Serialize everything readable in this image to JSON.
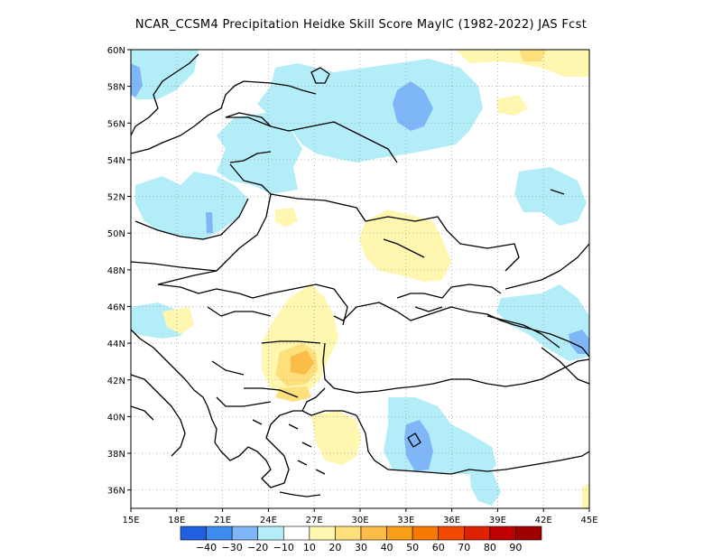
{
  "title": "NCAR_CCSM4  Precipitation Heidke Skill Score MayIC (1982-2022) JAS Fcst",
  "map": {
    "lon_range": [
      15,
      45
    ],
    "lat_range": [
      35,
      60
    ],
    "lon_ticks": [
      "15E",
      "18E",
      "21E",
      "24E",
      "27E",
      "30E",
      "33E",
      "36E",
      "39E",
      "42E",
      "45E"
    ],
    "lat_ticks": [
      "36N",
      "38N",
      "40N",
      "42N",
      "44N",
      "46N",
      "48N",
      "50N",
      "52N",
      "54N",
      "56N",
      "58N",
      "60N"
    ],
    "colorbar": {
      "colors": [
        "#1f5fe0",
        "#3c8cf0",
        "#7fb6f7",
        "#b3eef8",
        "#ffffff",
        "#fff6b0",
        "#fde07c",
        "#fbbd48",
        "#f89e17",
        "#f77a05",
        "#f24a00",
        "#de2100",
        "#bf0000",
        "#9e0000"
      ],
      "labels": [
        "-40",
        "-30",
        "-20",
        "-10",
        "10",
        "20",
        "30",
        "40",
        "50",
        "60",
        "70",
        "80",
        "90"
      ]
    }
  }
}
